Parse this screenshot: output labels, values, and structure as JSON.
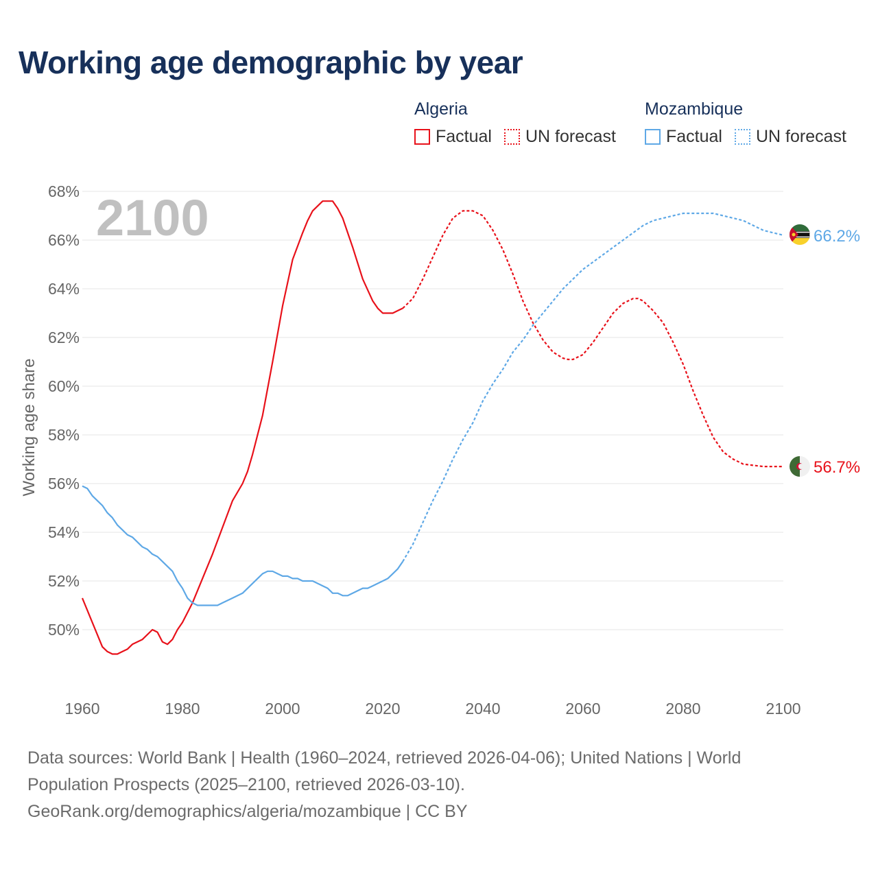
{
  "title": "Working age demographic by year",
  "legend": {
    "groups": [
      {
        "country": "Algeria",
        "factual_label": "Factual",
        "forecast_label": "UN forecast",
        "color": "#e8111a"
      },
      {
        "country": "Mozambique",
        "factual_label": "Factual",
        "forecast_label": "UN forecast",
        "color": "#5ea8e6"
      }
    ]
  },
  "footer": {
    "line1": "Data sources: World Bank | Health (1960–2024, retrieved 2026-04-06); United Nations | World",
    "line2": "Population Prospects (2025–2100, retrieved 2026-03-10).",
    "line3": "GeoRank.org/demographics/algeria/mozambique | CC BY"
  },
  "chart_data": {
    "type": "line",
    "title": "Working age demographic by year",
    "year_overlay": "2100",
    "xlabel": "",
    "ylabel": "Working age share",
    "xlim": [
      1960,
      2100
    ],
    "ylim": [
      48,
      68
    ],
    "x_ticks": [
      1960,
      1980,
      2000,
      2020,
      2040,
      2060,
      2080,
      2100
    ],
    "y_ticks": [
      50,
      52,
      54,
      56,
      58,
      60,
      62,
      64,
      66,
      68
    ],
    "y_tick_labels": [
      "50%",
      "52%",
      "54%",
      "56%",
      "58%",
      "60%",
      "62%",
      "64%",
      "66%",
      "68%"
    ],
    "grid": true,
    "series": [
      {
        "name": "Algeria",
        "color": "#e8111a",
        "end_label": "56.7%",
        "factual": {
          "x": [
            1960,
            1962,
            1964,
            1965,
            1966,
            1967,
            1968,
            1969,
            1970,
            1972,
            1974,
            1975,
            1976,
            1977,
            1978,
            1979,
            1980,
            1982,
            1984,
            1986,
            1988,
            1990,
            1992,
            1993,
            1994,
            1996,
            1998,
            2000,
            2002,
            2004,
            2005,
            2006,
            2007,
            2008,
            2009,
            2010,
            2011,
            2012,
            2014,
            2016,
            2018,
            2019,
            2020,
            2021,
            2022,
            2023,
            2024
          ],
          "y": [
            51.3,
            50.3,
            49.3,
            49.1,
            49.0,
            49.0,
            49.1,
            49.2,
            49.4,
            49.6,
            50.0,
            49.9,
            49.5,
            49.4,
            49.6,
            50.0,
            50.3,
            51.1,
            52.1,
            53.1,
            54.2,
            55.3,
            56.0,
            56.5,
            57.2,
            58.8,
            61.0,
            63.3,
            65.2,
            66.3,
            66.8,
            67.2,
            67.4,
            67.6,
            67.6,
            67.6,
            67.3,
            66.9,
            65.7,
            64.4,
            63.5,
            63.2,
            63.0,
            63.0,
            63.0,
            63.1,
            63.2
          ]
        },
        "forecast": {
          "x": [
            2024,
            2026,
            2028,
            2030,
            2032,
            2034,
            2036,
            2037,
            2038,
            2039,
            2040,
            2042,
            2044,
            2046,
            2048,
            2050,
            2052,
            2054,
            2056,
            2057,
            2058,
            2059,
            2060,
            2062,
            2064,
            2066,
            2068,
            2070,
            2071,
            2072,
            2073,
            2074,
            2076,
            2078,
            2080,
            2082,
            2084,
            2086,
            2088,
            2090,
            2092,
            2094,
            2096,
            2098,
            2100
          ],
          "y": [
            63.2,
            63.6,
            64.4,
            65.3,
            66.2,
            66.9,
            67.2,
            67.2,
            67.2,
            67.1,
            67.0,
            66.4,
            65.6,
            64.6,
            63.5,
            62.6,
            61.9,
            61.4,
            61.15,
            61.1,
            61.1,
            61.2,
            61.3,
            61.8,
            62.4,
            63.0,
            63.4,
            63.6,
            63.6,
            63.5,
            63.3,
            63.1,
            62.6,
            61.8,
            60.9,
            59.8,
            58.8,
            57.9,
            57.3,
            57.0,
            56.8,
            56.75,
            56.7,
            56.7,
            56.7
          ]
        }
      },
      {
        "name": "Mozambique",
        "color": "#5ea8e6",
        "end_label": "66.2%",
        "factual": {
          "x": [
            1960,
            1961,
            1962,
            1964,
            1965,
            1966,
            1967,
            1968,
            1969,
            1970,
            1972,
            1973,
            1974,
            1975,
            1976,
            1978,
            1979,
            1980,
            1981,
            1982,
            1983,
            1984,
            1986,
            1987,
            1988,
            1990,
            1992,
            1994,
            1996,
            1997,
            1998,
            1999,
            2000,
            2001,
            2002,
            2003,
            2004,
            2006,
            2008,
            2009,
            2010,
            2011,
            2012,
            2013,
            2014,
            2016,
            2017,
            2018,
            2020,
            2021,
            2022,
            2023,
            2024
          ],
          "y": [
            55.9,
            55.8,
            55.5,
            55.1,
            54.8,
            54.6,
            54.3,
            54.1,
            53.9,
            53.8,
            53.4,
            53.3,
            53.1,
            53.0,
            52.8,
            52.4,
            52.0,
            51.7,
            51.3,
            51.1,
            51.0,
            51.0,
            51.0,
            51.0,
            51.1,
            51.3,
            51.5,
            51.9,
            52.3,
            52.4,
            52.4,
            52.3,
            52.2,
            52.2,
            52.1,
            52.1,
            52.0,
            52.0,
            51.8,
            51.7,
            51.5,
            51.5,
            51.4,
            51.4,
            51.5,
            51.7,
            51.7,
            51.8,
            52.0,
            52.1,
            52.3,
            52.5,
            52.8
          ]
        },
        "forecast": {
          "x": [
            2024,
            2026,
            2028,
            2030,
            2032,
            2034,
            2036,
            2038,
            2040,
            2042,
            2044,
            2046,
            2048,
            2050,
            2052,
            2054,
            2056,
            2058,
            2060,
            2062,
            2064,
            2066,
            2068,
            2070,
            2072,
            2074,
            2076,
            2078,
            2080,
            2082,
            2084,
            2086,
            2088,
            2090,
            2092,
            2094,
            2096,
            2098,
            2100
          ],
          "y": [
            52.8,
            53.5,
            54.4,
            55.3,
            56.1,
            57.0,
            57.8,
            58.5,
            59.4,
            60.1,
            60.7,
            61.4,
            61.9,
            62.5,
            63.0,
            63.5,
            64.0,
            64.4,
            64.8,
            65.1,
            65.4,
            65.7,
            66.0,
            66.3,
            66.6,
            66.8,
            66.9,
            67.0,
            67.1,
            67.1,
            67.1,
            67.1,
            67.0,
            66.9,
            66.8,
            66.6,
            66.4,
            66.3,
            66.2
          ]
        }
      }
    ]
  }
}
